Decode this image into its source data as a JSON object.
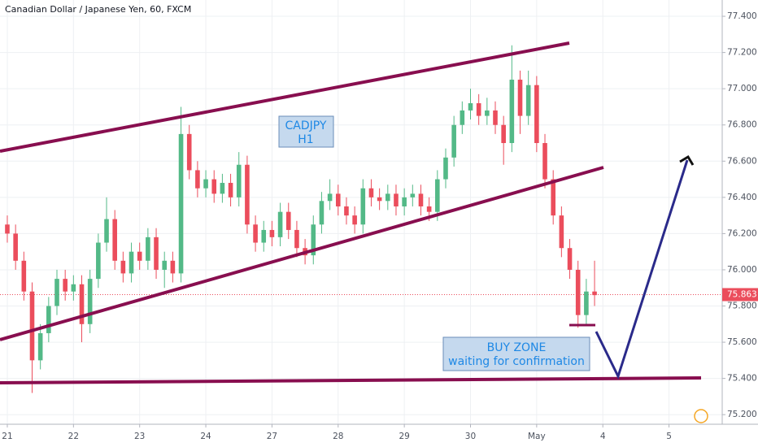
{
  "chart_data": {
    "type": "candlestick",
    "title": "Canadian Dollar / Japanese Yen, 60, FXCM",
    "annotations": [
      "CADJPY",
      "H1",
      "BUY ZONE",
      "waiting for confirmation"
    ],
    "last_price": 75.863,
    "up_color": "#53b987",
    "down_color": "#eb4d5c",
    "x": [
      0,
      3,
      6,
      9,
      12,
      15,
      18,
      21,
      24,
      27,
      30,
      33,
      36,
      39,
      42,
      45,
      48,
      51,
      54,
      57,
      60,
      63,
      66,
      69,
      72,
      75,
      78,
      81,
      84,
      87,
      90,
      93,
      96,
      99,
      102,
      105,
      108,
      111,
      114,
      117,
      120,
      123,
      126,
      129,
      132,
      135,
      138,
      141,
      144,
      147,
      150,
      153,
      156,
      159,
      162,
      165,
      168,
      171,
      174,
      177,
      180,
      183,
      186,
      189,
      192,
      195,
      198,
      201,
      204,
      207,
      210,
      213
    ],
    "open": [
      76.25,
      76.2,
      76.05,
      75.88,
      75.5,
      75.65,
      75.8,
      75.95,
      75.88,
      75.92,
      75.7,
      75.95,
      76.15,
      76.28,
      76.05,
      75.98,
      76.1,
      76.05,
      76.18,
      76.0,
      76.05,
      75.98,
      76.75,
      76.55,
      76.45,
      76.5,
      76.42,
      76.48,
      76.4,
      76.58,
      76.25,
      76.15,
      76.22,
      76.18,
      76.32,
      76.22,
      76.12,
      76.08,
      76.25,
      76.38,
      76.42,
      76.35,
      76.3,
      76.25,
      76.45,
      76.4,
      76.38,
      76.42,
      76.35,
      76.4,
      76.42,
      76.35,
      76.32,
      76.5,
      76.62,
      76.8,
      76.88,
      76.92,
      76.85,
      76.88,
      76.8,
      76.7,
      77.05,
      76.85,
      77.02,
      76.7,
      76.5,
      76.3,
      76.12,
      76.0,
      75.75,
      75.88
    ],
    "high": [
      76.3,
      76.25,
      76.1,
      75.93,
      75.7,
      75.85,
      76.0,
      76.0,
      75.97,
      75.97,
      76.0,
      76.2,
      76.4,
      76.33,
      76.1,
      76.15,
      76.15,
      76.23,
      76.23,
      76.1,
      76.1,
      76.9,
      76.8,
      76.6,
      76.55,
      76.55,
      76.53,
      76.53,
      76.65,
      76.63,
      76.3,
      76.27,
      76.27,
      76.37,
      76.37,
      76.27,
      76.17,
      76.3,
      76.43,
      76.5,
      76.47,
      76.4,
      76.35,
      76.5,
      76.5,
      76.45,
      76.47,
      76.47,
      76.45,
      76.47,
      76.47,
      76.4,
      76.55,
      76.67,
      76.85,
      76.93,
      77.0,
      76.97,
      76.95,
      76.93,
      76.85,
      77.24,
      77.1,
      77.1,
      77.07,
      76.75,
      76.55,
      76.35,
      76.17,
      76.05,
      75.95,
      76.05
    ],
    "low": [
      76.15,
      76.0,
      75.83,
      75.32,
      75.45,
      75.6,
      75.75,
      75.83,
      75.83,
      75.6,
      75.65,
      75.9,
      76.1,
      76.0,
      75.93,
      75.93,
      76.0,
      76.0,
      75.95,
      75.9,
      75.93,
      75.93,
      76.5,
      76.4,
      76.4,
      76.37,
      76.37,
      76.35,
      76.35,
      76.2,
      76.1,
      76.1,
      76.13,
      76.13,
      76.17,
      76.07,
      76.03,
      76.03,
      76.2,
      76.33,
      76.3,
      76.25,
      76.2,
      76.2,
      76.35,
      76.33,
      76.33,
      76.3,
      76.3,
      76.35,
      76.3,
      76.27,
      76.27,
      76.45,
      76.57,
      76.75,
      76.83,
      76.8,
      76.8,
      76.75,
      76.58,
      76.65,
      76.75,
      76.8,
      76.65,
      76.45,
      76.25,
      76.07,
      75.95,
      75.68,
      75.7,
      75.8
    ],
    "close": [
      76.2,
      76.05,
      75.88,
      75.5,
      75.65,
      75.8,
      75.95,
      75.88,
      75.92,
      75.7,
      75.95,
      76.15,
      76.28,
      76.05,
      75.98,
      76.1,
      76.05,
      76.18,
      76.0,
      76.05,
      75.98,
      76.75,
      76.55,
      76.45,
      76.5,
      76.42,
      76.48,
      76.4,
      76.58,
      76.25,
      76.15,
      76.22,
      76.18,
      76.32,
      76.22,
      76.12,
      76.08,
      76.25,
      76.38,
      76.42,
      76.35,
      76.3,
      76.25,
      76.45,
      76.4,
      76.38,
      76.42,
      76.35,
      76.4,
      76.42,
      76.35,
      76.32,
      76.5,
      76.62,
      76.8,
      76.88,
      76.92,
      76.85,
      76.88,
      76.8,
      76.7,
      77.05,
      76.85,
      77.02,
      76.7,
      76.5,
      76.3,
      76.12,
      76.0,
      75.75,
      75.88,
      75.86
    ],
    "xlim": [
      -2.65,
      259.3
    ],
    "xticks": [
      {
        "value": 0,
        "label": "21"
      },
      {
        "value": 24,
        "label": "22"
      },
      {
        "value": 48,
        "label": "23"
      },
      {
        "value": 72,
        "label": "24"
      },
      {
        "value": 96,
        "label": "27"
      },
      {
        "value": 120,
        "label": "28"
      },
      {
        "value": 144,
        "label": "29"
      },
      {
        "value": 168,
        "label": "30"
      },
      {
        "value": 192,
        "label": "May"
      },
      {
        "value": 216,
        "label": "4"
      },
      {
        "value": 240,
        "label": "5"
      }
    ],
    "ylim": [
      75.147,
      77.49
    ],
    "yticks": [
      {
        "value": 75.2,
        "label": "75.200"
      },
      {
        "value": 75.4,
        "label": "75.400"
      },
      {
        "value": 75.6,
        "label": "75.600"
      },
      {
        "value": 75.8,
        "label": "75.800"
      },
      {
        "value": 76.0,
        "label": "76.000"
      },
      {
        "value": 76.2,
        "label": "76.200"
      },
      {
        "value": 76.4,
        "label": "76.400"
      },
      {
        "value": 76.6,
        "label": "76.600"
      },
      {
        "value": 76.8,
        "label": "76.800"
      },
      {
        "value": 77.0,
        "label": "77.000"
      },
      {
        "value": 77.2,
        "label": "77.200"
      },
      {
        "value": 77.4,
        "label": "77.400"
      }
    ],
    "grid": true
  }
}
